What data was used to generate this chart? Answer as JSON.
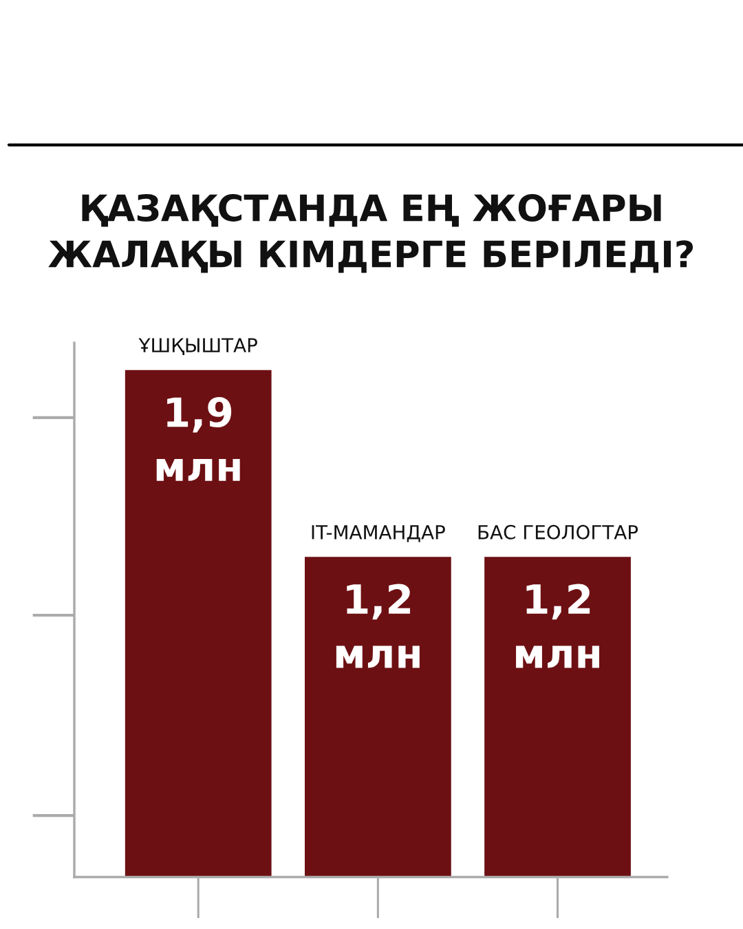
{
  "chart_data": {
    "type": "bar",
    "title": "ҚАЗАҚСТАНДА ЕҢ ЖОҒАРЫ\nЖАЛАҚЫ КІМДЕРГЕ БЕРІЛЕДІ?",
    "categories": [
      "ҰШҚЫШТАР",
      "IT-МАМАНДАР",
      "БАС ГЕОЛОГТАР"
    ],
    "values": [
      1.9,
      1.2,
      1.2
    ],
    "value_labels": [
      "1,9\nмлн",
      "1,2\nмлн",
      "1,2\nмлн"
    ],
    "color": "#6d1013",
    "ylim": [
      0,
      2
    ],
    "tick_labels": "x"
  }
}
